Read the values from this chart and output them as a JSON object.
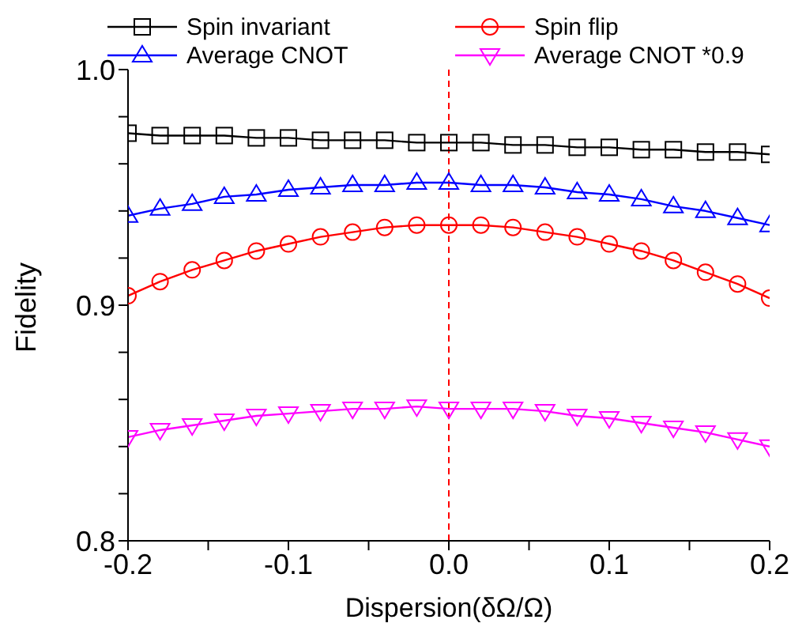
{
  "chart_data": {
    "type": "line",
    "xlabel": "Dispersion(δΩ/Ω)",
    "ylabel": "Fidelity",
    "x": [
      -0.2,
      -0.18,
      -0.16,
      -0.14,
      -0.12,
      -0.1,
      -0.08,
      -0.06,
      -0.04,
      -0.02,
      0,
      0.02,
      0.04,
      0.06,
      0.08,
      0.1,
      0.12,
      0.14,
      0.16,
      0.18,
      0.2
    ],
    "series": [
      {
        "name": "Spin invariant",
        "color": "#000000",
        "marker": "square",
        "values": [
          0.973,
          0.972,
          0.972,
          0.972,
          0.971,
          0.971,
          0.97,
          0.97,
          0.97,
          0.969,
          0.969,
          0.969,
          0.968,
          0.968,
          0.967,
          0.967,
          0.966,
          0.966,
          0.965,
          0.965,
          0.964
        ]
      },
      {
        "name": "Spin flip",
        "color": "#ff0000",
        "marker": "circle",
        "values": [
          0.904,
          0.91,
          0.915,
          0.919,
          0.923,
          0.926,
          0.929,
          0.931,
          0.933,
          0.934,
          0.934,
          0.934,
          0.933,
          0.931,
          0.929,
          0.926,
          0.923,
          0.919,
          0.914,
          0.909,
          0.903
        ]
      },
      {
        "name": "Average CNOT",
        "color": "#0000ff",
        "marker": "triangle",
        "values": [
          0.938,
          0.941,
          0.943,
          0.946,
          0.947,
          0.949,
          0.95,
          0.951,
          0.951,
          0.952,
          0.952,
          0.951,
          0.951,
          0.95,
          0.948,
          0.947,
          0.945,
          0.942,
          0.94,
          0.937,
          0.934
        ]
      },
      {
        "name": "Average CNOT *0.9",
        "color": "#ff00ff",
        "marker": "triangle-down",
        "values": [
          0.844,
          0.847,
          0.849,
          0.851,
          0.853,
          0.854,
          0.855,
          0.856,
          0.856,
          0.857,
          0.856,
          0.856,
          0.856,
          0.855,
          0.853,
          0.852,
          0.85,
          0.848,
          0.846,
          0.843,
          0.84
        ]
      }
    ],
    "xlim": [
      -0.2,
      0.2
    ],
    "xticks": [
      {
        "value": -0.2,
        "label": "-0.2"
      },
      {
        "value": -0.15,
        "label": null
      },
      {
        "value": -0.1,
        "label": "-0.1"
      },
      {
        "value": -0.05,
        "label": null
      },
      {
        "value": 0,
        "label": "0.0"
      },
      {
        "value": 0.05,
        "label": null
      },
      {
        "value": 0.1,
        "label": "0.1"
      },
      {
        "value": 0.15,
        "label": null
      },
      {
        "value": 0.2,
        "label": "0.2"
      }
    ],
    "ylim": [
      0.8,
      1.0
    ],
    "yticks": [
      {
        "value": 0.8,
        "label": "0.8"
      },
      {
        "value": 0.82,
        "label": null
      },
      {
        "value": 0.84,
        "label": null
      },
      {
        "value": 0.86,
        "label": null
      },
      {
        "value": 0.88,
        "label": null
      },
      {
        "value": 0.9,
        "label": "0.9"
      },
      {
        "value": 0.92,
        "label": null
      },
      {
        "value": 0.94,
        "label": null
      },
      {
        "value": 0.96,
        "label": null
      },
      {
        "value": 0.98,
        "label": null
      },
      {
        "value": 1.0,
        "label": "1.0"
      }
    ],
    "ref_lines": [
      {
        "axis": "x",
        "value": 0,
        "color": "#ff0000",
        "line_style": "dashed"
      }
    ],
    "legend": "top",
    "grid": false,
    "line_style": "solid"
  }
}
